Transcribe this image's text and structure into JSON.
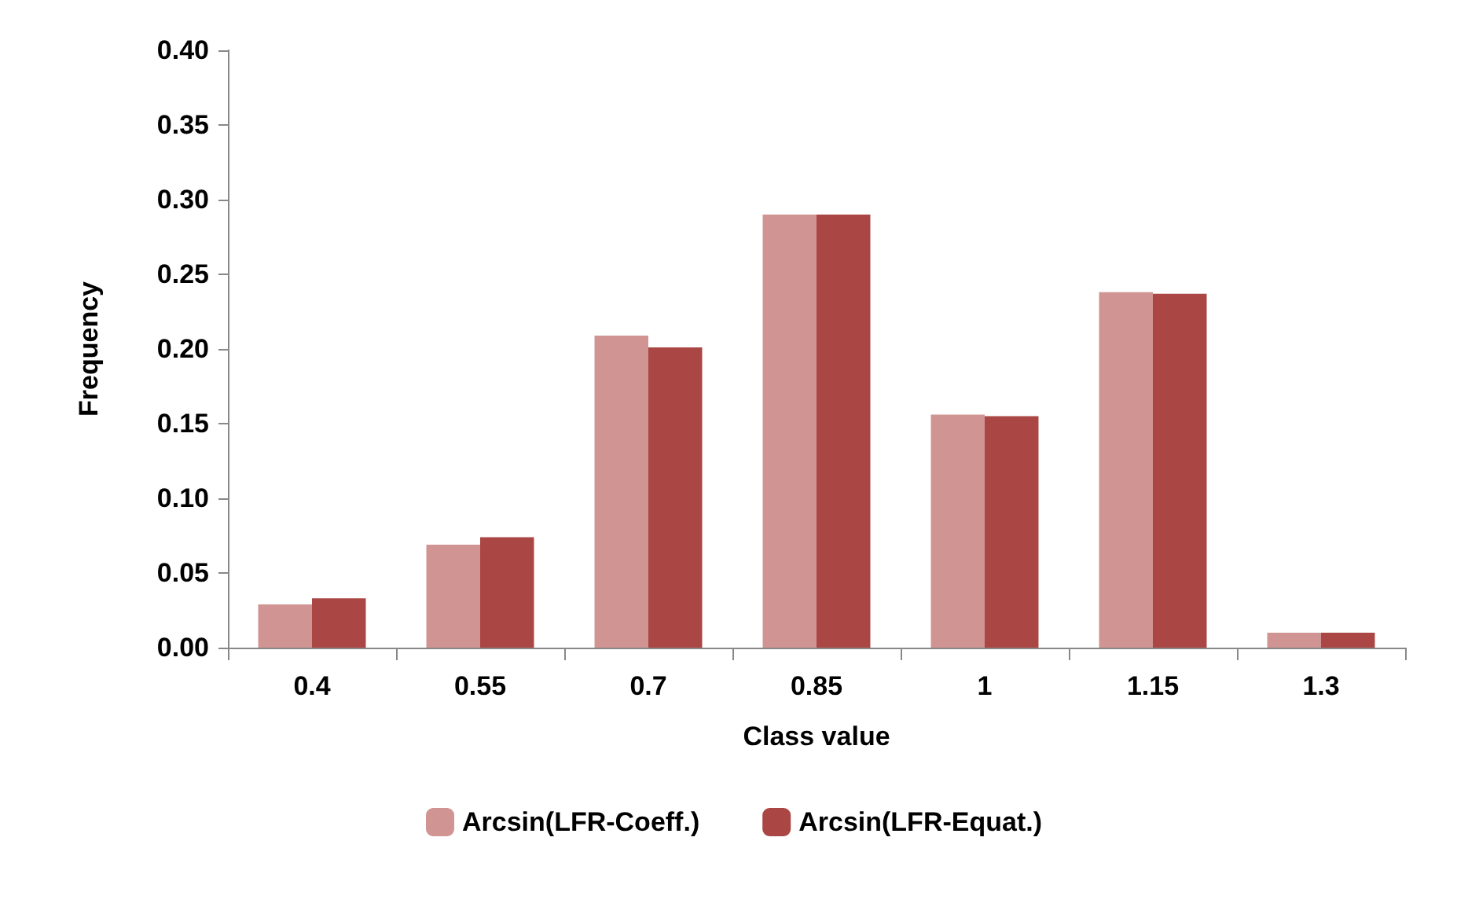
{
  "chart_data": {
    "type": "bar",
    "xlabel": "Class value",
    "ylabel": "Frequency",
    "categories": [
      "0.4",
      "0.55",
      "0.7",
      "0.85",
      "1",
      "1.15",
      "1.3"
    ],
    "series": [
      {
        "name": "Arcsin(LFR-Coeff.)",
        "color": "#d09592",
        "values": [
          0.029,
          0.069,
          0.209,
          0.29,
          0.156,
          0.238,
          0.01
        ]
      },
      {
        "name": "Arcsin(LFR-Equat.)",
        "color": "#aa4644",
        "values": [
          0.033,
          0.074,
          0.201,
          0.29,
          0.155,
          0.237,
          0.01
        ]
      }
    ],
    "ylim": [
      0,
      0.4
    ],
    "yticks": [
      {
        "value": 0,
        "label": "0.00"
      },
      {
        "value": 0.05,
        "label": "0.05"
      },
      {
        "value": 0.1,
        "label": "0.10"
      },
      {
        "value": 0.15,
        "label": "0.15"
      },
      {
        "value": 0.2,
        "label": "0.20"
      },
      {
        "value": 0.25,
        "label": "0.25"
      },
      {
        "value": 0.3,
        "label": "0.30"
      },
      {
        "value": 0.35,
        "label": "0.35"
      },
      {
        "value": 0.4,
        "label": "0.40"
      }
    ],
    "grid": false,
    "legend": "bottom"
  }
}
